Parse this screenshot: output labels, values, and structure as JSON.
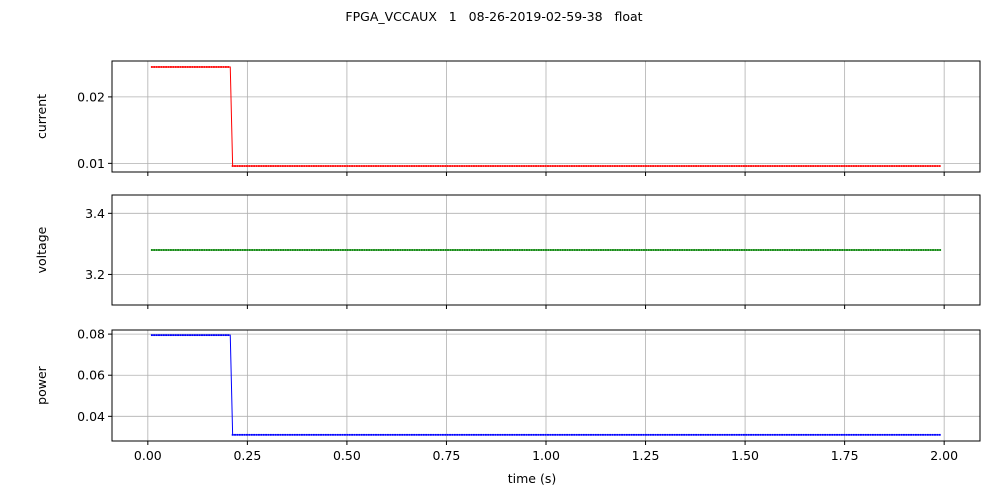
{
  "figure": {
    "title": "FPGA_VCCAUX   1   08-26-2019-02-59-38   float",
    "xlabel": "time (s)"
  },
  "chart_data": [
    {
      "type": "line",
      "ylabel": "current",
      "color": "#ff0000",
      "xlim": [
        -0.09,
        2.09
      ],
      "ylim": [
        0.0087,
        0.0254
      ],
      "yticks": [
        0.01,
        0.02
      ],
      "ytick_labels": [
        "0.01",
        "0.02"
      ],
      "grid": true,
      "series": [
        {
          "x": [
            0.01,
            0.207,
            0.213,
            1.99
          ],
          "y": [
            0.0245,
            0.0245,
            0.0096,
            0.0096
          ]
        }
      ]
    },
    {
      "type": "line",
      "ylabel": "voltage",
      "color": "#008000",
      "xlim": [
        -0.09,
        2.09
      ],
      "ylim": [
        3.1,
        3.46
      ],
      "yticks": [
        3.2,
        3.4
      ],
      "ytick_labels": [
        "3.2",
        "3.4"
      ],
      "grid": true,
      "series": [
        {
          "x": [
            0.01,
            1.99
          ],
          "y": [
            3.28,
            3.28
          ]
        }
      ]
    },
    {
      "type": "line",
      "ylabel": "power",
      "color": "#0000ff",
      "xlim": [
        -0.09,
        2.09
      ],
      "ylim": [
        0.028,
        0.082
      ],
      "yticks": [
        0.04,
        0.06,
        0.08
      ],
      "ytick_labels": [
        "0.04",
        "0.06",
        "0.08"
      ],
      "grid": true,
      "series": [
        {
          "x": [
            0.01,
            0.207,
            0.213,
            1.99
          ],
          "y": [
            0.0795,
            0.0795,
            0.031,
            0.031
          ]
        }
      ]
    }
  ],
  "xticks": [
    0.0,
    0.25,
    0.5,
    0.75,
    1.0,
    1.25,
    1.5,
    1.75,
    2.0
  ],
  "xtick_labels": [
    "0.00",
    "0.25",
    "0.50",
    "0.75",
    "1.00",
    "1.25",
    "1.50",
    "1.75",
    "2.00"
  ]
}
